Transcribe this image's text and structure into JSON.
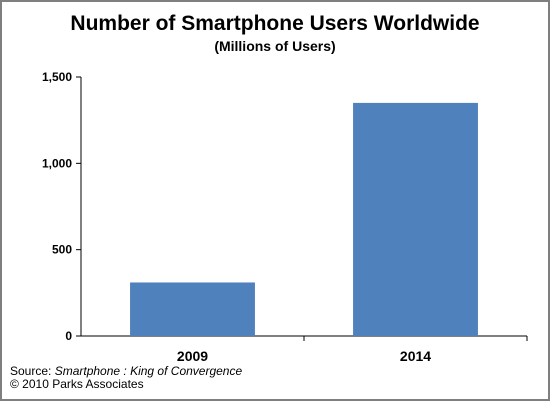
{
  "chart_data": {
    "type": "bar",
    "title": "Number of Smartphone Users Worldwide",
    "subtitle": "(Millions of Users)",
    "categories": [
      "2009",
      "2014"
    ],
    "values": [
      310,
      1350
    ],
    "ylim": [
      0,
      1500
    ],
    "yticks": [
      0,
      500,
      1000,
      1500
    ],
    "ytick_labels": [
      "0",
      "500",
      "1,000",
      "1,500"
    ],
    "xlabel": "",
    "ylabel": "",
    "grid": false,
    "bar_color": "#4f81bd",
    "axis_color": "#000000"
  },
  "source": {
    "prefix": "Source: ",
    "title": "Smartphone : King of Convergence",
    "copyright": "© 2010 Parks Associates"
  }
}
